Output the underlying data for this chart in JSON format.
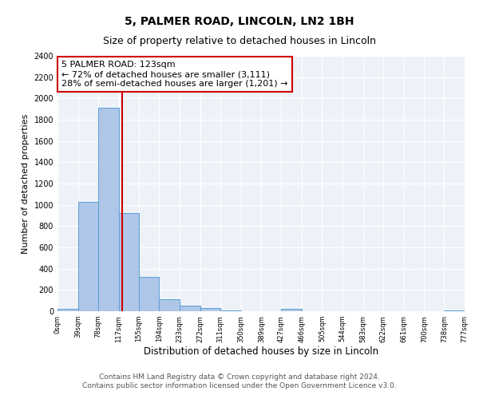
{
  "title": "5, PALMER ROAD, LINCOLN, LN2 1BH",
  "subtitle": "Size of property relative to detached houses in Lincoln",
  "xlabel": "Distribution of detached houses by size in Lincoln",
  "ylabel": "Number of detached properties",
  "bar_edges": [
    0,
    39,
    78,
    117,
    155,
    194,
    233,
    272,
    311,
    350,
    389,
    427,
    466,
    505,
    544,
    583,
    622,
    661,
    700,
    738,
    777
  ],
  "bar_heights": [
    20,
    1025,
    1910,
    920,
    320,
    110,
    50,
    30,
    10,
    0,
    0,
    20,
    0,
    0,
    0,
    0,
    0,
    0,
    0,
    10
  ],
  "bar_color": "#aec6e8",
  "bar_edge_color": "#5a9fd4",
  "bg_color": "#eef2f8",
  "grid_color": "#ffffff",
  "property_line_x": 123,
  "property_line_color": "#cc0000",
  "annotation_line1": "5 PALMER ROAD: 123sqm",
  "annotation_line2": "← 72% of detached houses are smaller (3,111)",
  "annotation_line3": "28% of semi-detached houses are larger (1,201) →",
  "annotation_box_color": "#cc0000",
  "ylim": [
    0,
    2400
  ],
  "yticks": [
    0,
    200,
    400,
    600,
    800,
    1000,
    1200,
    1400,
    1600,
    1800,
    2000,
    2200,
    2400
  ],
  "tick_labels": [
    "0sqm",
    "39sqm",
    "78sqm",
    "117sqm",
    "155sqm",
    "194sqm",
    "233sqm",
    "272sqm",
    "311sqm",
    "350sqm",
    "389sqm",
    "427sqm",
    "466sqm",
    "505sqm",
    "544sqm",
    "583sqm",
    "622sqm",
    "661sqm",
    "700sqm",
    "738sqm",
    "777sqm"
  ],
  "footer_line1": "Contains HM Land Registry data © Crown copyright and database right 2024.",
  "footer_line2": "Contains public sector information licensed under the Open Government Licence v3.0.",
  "title_fontsize": 10,
  "subtitle_fontsize": 9,
  "annotation_fontsize": 8,
  "footer_fontsize": 6.5,
  "ylabel_fontsize": 8,
  "xlabel_fontsize": 8.5
}
